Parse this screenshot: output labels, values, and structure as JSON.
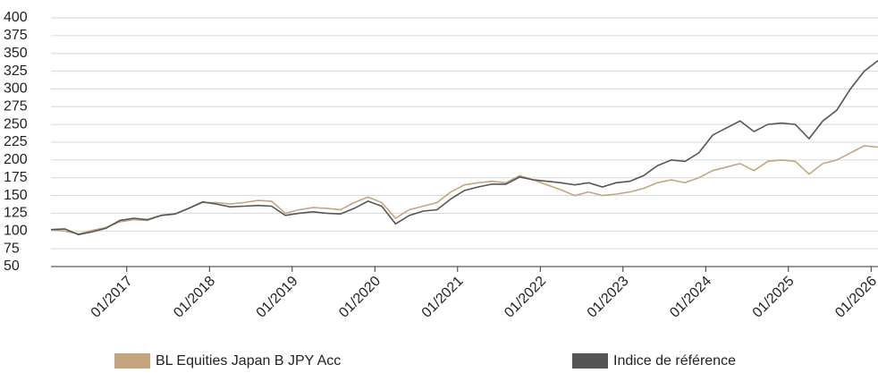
{
  "chart_data": {
    "type": "line",
    "x": [
      "2016-02",
      "2016-04",
      "2016-06",
      "2016-08",
      "2016-10",
      "2016-12",
      "2017-02",
      "2017-04",
      "2017-06",
      "2017-08",
      "2017-10",
      "2017-12",
      "2018-02",
      "2018-04",
      "2018-06",
      "2018-08",
      "2018-10",
      "2018-12",
      "2019-02",
      "2019-04",
      "2019-06",
      "2019-08",
      "2019-10",
      "2019-12",
      "2020-02",
      "2020-04",
      "2020-06",
      "2020-08",
      "2020-10",
      "2020-12",
      "2021-02",
      "2021-04",
      "2021-06",
      "2021-08",
      "2021-10",
      "2021-12",
      "2022-02",
      "2022-04",
      "2022-06",
      "2022-08",
      "2022-10",
      "2022-12",
      "2023-02",
      "2023-04",
      "2023-06",
      "2023-08",
      "2023-10",
      "2023-12",
      "2024-02",
      "2024-04",
      "2024-06",
      "2024-08",
      "2024-10",
      "2024-12",
      "2025-02",
      "2025-04",
      "2025-06",
      "2025-08",
      "2025-10",
      "2025-12",
      "2026-02"
    ],
    "series": [
      {
        "name": "BL Equities Japan B JPY Acc",
        "color": "#c4a57e",
        "values": [
          102,
          100,
          96,
          101,
          105,
          113,
          116,
          115,
          122,
          124,
          132,
          140,
          140,
          138,
          140,
          143,
          142,
          125,
          130,
          133,
          132,
          130,
          140,
          148,
          140,
          118,
          130,
          135,
          140,
          155,
          165,
          168,
          170,
          168,
          178,
          172,
          165,
          158,
          150,
          155,
          150,
          152,
          155,
          160,
          168,
          172,
          168,
          175,
          185,
          190,
          195,
          185,
          198,
          200,
          198,
          180,
          195,
          200,
          210,
          220,
          218
        ]
      },
      {
        "name": "Indice de référence",
        "color": "#555555",
        "values": [
          102,
          103,
          95,
          99,
          104,
          115,
          118,
          116,
          122,
          124,
          132,
          141,
          138,
          134,
          135,
          136,
          135,
          122,
          125,
          127,
          125,
          124,
          132,
          142,
          135,
          110,
          122,
          128,
          130,
          145,
          157,
          162,
          166,
          166,
          176,
          172,
          170,
          168,
          165,
          168,
          162,
          168,
          170,
          178,
          192,
          200,
          198,
          210,
          235,
          245,
          255,
          240,
          250,
          252,
          250,
          230,
          255,
          270,
          300,
          325,
          340
        ]
      }
    ],
    "xlim": [
      "2016-02",
      "2026-02"
    ],
    "xticks": [
      {
        "value": "2017-01",
        "label": "01/2017"
      },
      {
        "value": "2018-01",
        "label": "01/2018"
      },
      {
        "value": "2019-01",
        "label": "01/2019"
      },
      {
        "value": "2020-01",
        "label": "01/2020"
      },
      {
        "value": "2021-01",
        "label": "01/2021"
      },
      {
        "value": "2022-01",
        "label": "01/2022"
      },
      {
        "value": "2023-01",
        "label": "01/2023"
      },
      {
        "value": "2024-01",
        "label": "01/2024"
      },
      {
        "value": "2025-01",
        "label": "01/2025"
      },
      {
        "value": "2026-01",
        "label": "01/2026"
      }
    ],
    "ylim": [
      50,
      400
    ],
    "yticks": [
      50,
      75,
      100,
      125,
      150,
      175,
      200,
      225,
      250,
      275,
      300,
      325,
      350,
      375,
      400
    ],
    "grid": true
  }
}
